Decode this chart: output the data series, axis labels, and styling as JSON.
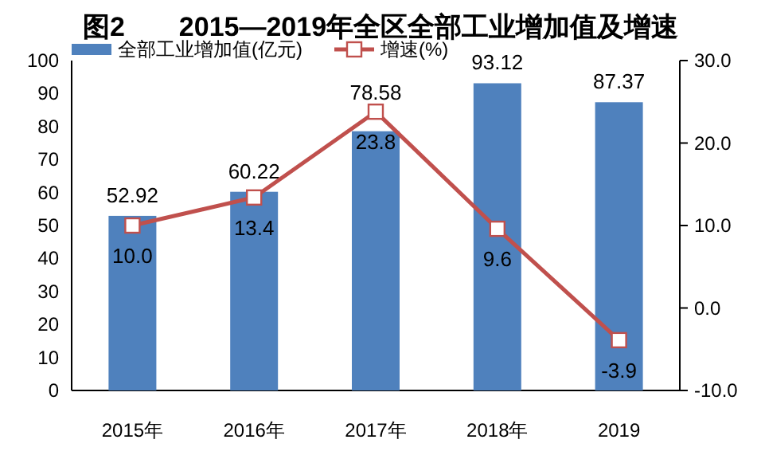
{
  "chart_data": {
    "type": "bar",
    "title": "图2　　2015—2019年全区全部工业增加值及增速",
    "categories": [
      "2015年",
      "2016年",
      "2017年",
      "2018年",
      "2019"
    ],
    "series": [
      {
        "name": "全部工业增加值(亿元)",
        "type": "bar",
        "color": "#4f81bd",
        "values": [
          52.92,
          60.22,
          78.58,
          93.12,
          87.37
        ],
        "value_labels": [
          "52.92",
          "60.22",
          "78.58",
          "93.12",
          "87.37"
        ]
      },
      {
        "name": "增速(%)",
        "type": "line",
        "axis": "y2",
        "color": "#c0504d",
        "marker": "square",
        "values": [
          10.0,
          13.4,
          23.8,
          9.6,
          -3.9
        ],
        "value_labels": [
          "10.0",
          "13.4",
          "23.8",
          "9.6",
          "-3.9"
        ]
      }
    ],
    "ylim": [
      0,
      100
    ],
    "yticks": [
      0,
      10,
      20,
      30,
      40,
      50,
      60,
      70,
      80,
      90,
      100
    ],
    "y2lim": [
      -10,
      30
    ],
    "y2ticks": [
      {
        "value": -10,
        "label": "-10.0"
      },
      {
        "value": 0,
        "label": "0.0"
      },
      {
        "value": 10,
        "label": "10.0"
      },
      {
        "value": 20,
        "label": "20.0"
      },
      {
        "value": 30,
        "label": "30.0"
      }
    ],
    "legend": "top",
    "grid": false
  }
}
